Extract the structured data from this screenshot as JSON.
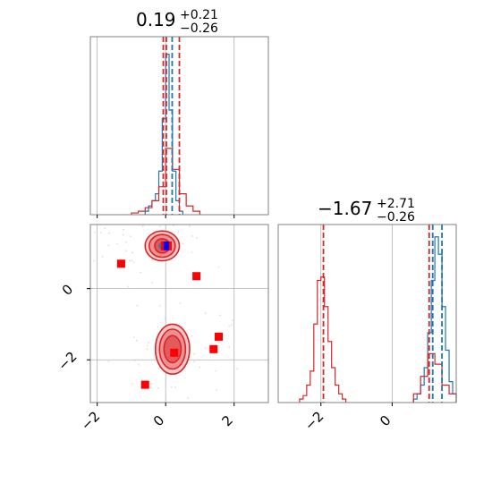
{
  "chart_data": [
    {
      "type": "histogram",
      "panel": "marginal-param-1",
      "title": {
        "value": "0.19",
        "upper": "+0.21",
        "lower": "−0.26"
      },
      "xlim": [
        -2.2,
        3.0
      ],
      "grid": true,
      "series": [
        {
          "name": "",
          "color": "#1f77b4",
          "bins": [
            -0.6,
            -0.5,
            -0.4,
            -0.3,
            -0.2,
            -0.1,
            0.0,
            0.1,
            0.2,
            0.3,
            0.4,
            0.5
          ],
          "counts": [
            0.02,
            0.05,
            0.08,
            0.12,
            0.25,
            0.55,
            0.92,
            0.6,
            0.25,
            0.08,
            0.02
          ]
        },
        {
          "name": "",
          "color": "#d62728",
          "bins": [
            -1.0,
            -0.8,
            -0.6,
            -0.4,
            -0.2,
            0.0,
            0.2,
            0.4,
            0.6,
            0.8,
            1.0
          ],
          "counts": [
            0.01,
            0.02,
            0.04,
            0.08,
            0.16,
            0.38,
            0.26,
            0.12,
            0.05,
            0.02
          ]
        }
      ],
      "vlines": [
        {
          "x": 0.19,
          "color": "#1f77b4",
          "style": "dashed"
        },
        {
          "x": -0.07,
          "color": "#d62728",
          "style": "dashed"
        },
        {
          "x": 0.4,
          "color": "#d62728",
          "style": "dashed"
        },
        {
          "x": 0.02,
          "color": "#d62728",
          "style": "dashed"
        }
      ]
    },
    {
      "type": "scatter-contour",
      "panel": "joint-param-1-param-2",
      "xlim": [
        -2.2,
        3.0
      ],
      "ylim": [
        -3.2,
        1.8
      ],
      "xticks": [
        -2,
        0,
        2
      ],
      "xtick_labels": [
        "−2",
        "0",
        "2"
      ],
      "yticks": [
        -2,
        0
      ],
      "ytick_labels": [
        "−2",
        "0"
      ],
      "grid": true,
      "contours": [
        {
          "name": "upper-mode",
          "cx": -0.1,
          "cy": 1.2,
          "levels": [
            [
              0.5,
              0.42
            ],
            [
              0.38,
              0.32
            ],
            [
              0.22,
              0.2
            ]
          ],
          "color": "#d62728"
        },
        {
          "name": "lower-mode",
          "cx": 0.2,
          "cy": -1.7,
          "levels": [
            [
              0.5,
              0.7
            ],
            [
              0.38,
              0.56
            ],
            [
              0.25,
              0.38
            ]
          ],
          "color": "#d62728"
        }
      ],
      "points": [
        {
          "x": -1.3,
          "y": 0.7
        },
        {
          "x": 0.9,
          "y": 0.35
        },
        {
          "x": 1.55,
          "y": -1.35
        },
        {
          "x": 1.4,
          "y": -1.7
        },
        {
          "x": 0.25,
          "y": -1.8
        },
        {
          "x": -0.6,
          "y": -2.7
        }
      ],
      "point_color": "#ff0000",
      "highlight": {
        "x": 0.02,
        "y": 1.2,
        "color": "#0000ff"
      }
    },
    {
      "type": "histogram",
      "panel": "marginal-param-2",
      "title": {
        "value": "−1.67",
        "upper": "+2.71",
        "lower": "−0.26"
      },
      "xlim": [
        -3.2,
        1.8
      ],
      "xticks": [
        -2,
        0
      ],
      "xtick_labels": [
        "−2",
        "0"
      ],
      "grid": true,
      "series": [
        {
          "name": "",
          "color": "#1f77b4",
          "bins": [
            0.6,
            0.7,
            0.8,
            0.9,
            1.0,
            1.1,
            1.2,
            1.3,
            1.4,
            1.5,
            1.6,
            1.7,
            1.8
          ],
          "counts": [
            0.02,
            0.05,
            0.1,
            0.2,
            0.4,
            0.7,
            0.95,
            0.85,
            0.55,
            0.3,
            0.12,
            0.05
          ]
        },
        {
          "name": "",
          "color": "#d62728",
          "bins": [
            -2.6,
            -2.5,
            -2.4,
            -2.3,
            -2.2,
            -2.1,
            -2.0,
            -1.9,
            -1.8,
            -1.7,
            -1.6,
            -1.5,
            -1.4,
            -1.3
          ],
          "counts": [
            0.02,
            0.04,
            0.1,
            0.18,
            0.45,
            0.7,
            0.72,
            0.55,
            0.35,
            0.2,
            0.1,
            0.05,
            0.02
          ]
        },
        {
          "name": "",
          "color": "#d62728",
          "bins": [
            0.6,
            0.8,
            1.0,
            1.2,
            1.4,
            1.6,
            1.8
          ],
          "counts": [
            0.05,
            0.15,
            0.28,
            0.22,
            0.1,
            0.05
          ]
        }
      ],
      "vlines": [
        {
          "x": -1.93,
          "color": "#d62728",
          "style": "dashed"
        },
        {
          "x": 1.04,
          "color": "#d62728",
          "style": "dashed"
        },
        {
          "x": 1.14,
          "color": "#1f77b4",
          "style": "dashed"
        },
        {
          "x": 1.4,
          "color": "#1f77b4",
          "style": "dashed"
        }
      ]
    }
  ]
}
